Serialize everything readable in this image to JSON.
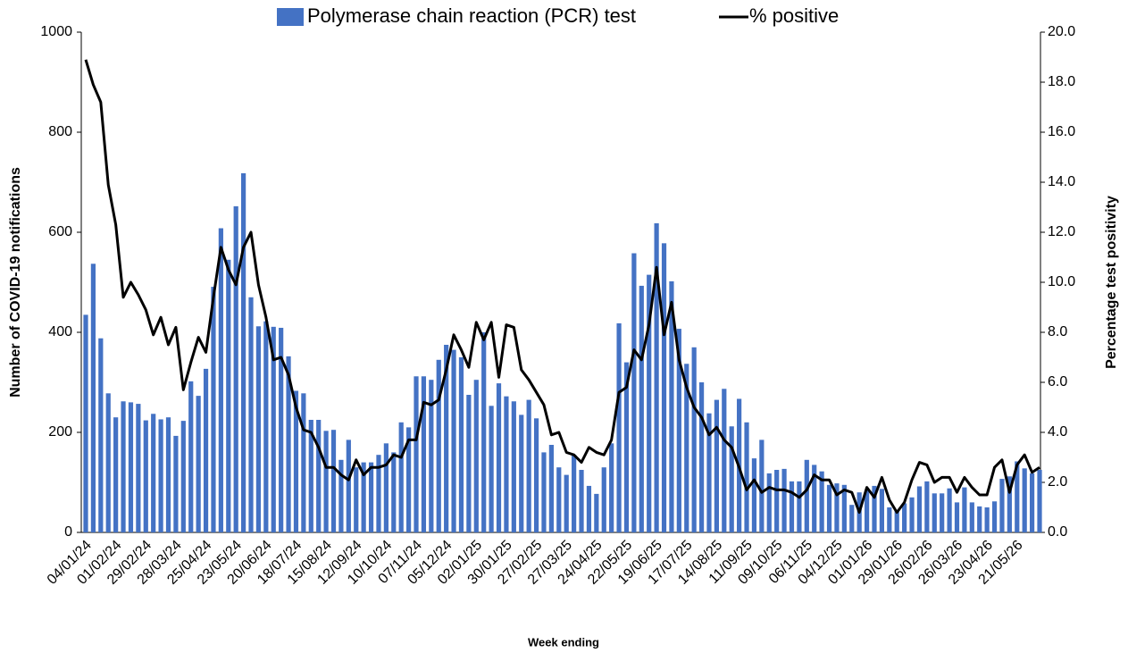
{
  "chart_data": {
    "type": "bar_line",
    "x_label": "Week ending",
    "y_label": "Number of COVID-19 notifications",
    "y2_label": "Percentage test positivity",
    "categories": [
      "04/01/24",
      null,
      null,
      null,
      "01/02/24",
      null,
      null,
      null,
      "29/02/24",
      null,
      null,
      null,
      "28/03/24",
      null,
      null,
      null,
      "25/04/24",
      null,
      null,
      null,
      "23/05/24",
      null,
      null,
      null,
      "20/06/24",
      null,
      null,
      null,
      "18/07/24",
      null,
      null,
      null,
      "15/08/24",
      null,
      null,
      null,
      "12/09/24",
      null,
      null,
      null,
      "10/10/24",
      null,
      null,
      null,
      "07/11/24",
      null,
      null,
      null,
      "05/12/24",
      null,
      null,
      null,
      "02/01/25",
      null,
      null,
      null,
      "30/01/25",
      null,
      null,
      null,
      "27/02/25",
      null,
      null,
      null,
      "27/03/25",
      null,
      null,
      null,
      "24/04/25",
      null,
      null,
      null,
      "22/05/25",
      null,
      null,
      null,
      "19/06/25",
      null,
      null,
      null,
      "17/07/25",
      null,
      null,
      null,
      "14/08/25",
      null,
      null,
      null,
      "11/09/25",
      null,
      null,
      null,
      "09/10/25",
      null,
      null,
      null,
      "06/11/25",
      null,
      null,
      null,
      "04/12/25",
      null,
      null,
      null,
      "01/01/26",
      null,
      null,
      null,
      "29/01/26",
      null,
      null,
      null,
      "26/02/26",
      null,
      null,
      null,
      "26/03/26",
      null,
      null,
      null,
      "23/04/26",
      null,
      null,
      null,
      "21/05/26",
      null,
      null,
      null
    ],
    "series": [
      {
        "name": "Polymerase chain reaction (PCR) test",
        "kind": "bar",
        "color": "#4472c4",
        "values": [
          435,
          537,
          388,
          278,
          230,
          262,
          260,
          257,
          224,
          237,
          226,
          230,
          193,
          223,
          302,
          273,
          327,
          491,
          608,
          545,
          652,
          718,
          470,
          412,
          422,
          411,
          409,
          352,
          283,
          278,
          225,
          225,
          203,
          205,
          145,
          185,
          130,
          140,
          140,
          155,
          178,
          160,
          220,
          210,
          312,
          312,
          305,
          345,
          375,
          365,
          350,
          275,
          305,
          400,
          253,
          298,
          272,
          262,
          235,
          265,
          228,
          160,
          175,
          130,
          115,
          155,
          125,
          93,
          77,
          130,
          178,
          418,
          340,
          558,
          493,
          515,
          618,
          578,
          502,
          407,
          337,
          370,
          300,
          238,
          265,
          287,
          212,
          267,
          220,
          148,
          185,
          118,
          125,
          127,
          102,
          102,
          145,
          135,
          122,
          95,
          98,
          95,
          55,
          80,
          85,
          93,
          87,
          50,
          45,
          58,
          70,
          92,
          102,
          78,
          78,
          88,
          60,
          90,
          60,
          52,
          50,
          62,
          107,
          112,
          142,
          128,
          118,
          125
        ]
      },
      {
        "name": "% positive",
        "kind": "line",
        "color": "#000000",
        "axis": "y2",
        "values": [
          18.9,
          17.9,
          17.2,
          13.9,
          12.3,
          9.4,
          10.0,
          9.5,
          8.9,
          7.9,
          8.6,
          7.5,
          8.2,
          5.7,
          6.8,
          7.8,
          7.2,
          9.4,
          11.4,
          10.5,
          9.9,
          11.4,
          12.0,
          9.9,
          8.6,
          6.9,
          7.0,
          6.3,
          5.0,
          4.1,
          4.0,
          3.4,
          2.6,
          2.6,
          2.3,
          2.1,
          2.9,
          2.3,
          2.6,
          2.6,
          2.7,
          3.1,
          3.0,
          3.7,
          3.7,
          5.2,
          5.1,
          5.3,
          6.5,
          7.9,
          7.3,
          6.6,
          8.4,
          7.7,
          8.4,
          6.2,
          8.3,
          8.2,
          6.5,
          6.1,
          5.6,
          5.1,
          3.9,
          4.0,
          3.2,
          3.1,
          2.8,
          3.4,
          3.2,
          3.1,
          3.7,
          5.6,
          5.8,
          7.3,
          6.9,
          8.3,
          10.6,
          7.9,
          9.2,
          6.9,
          5.8,
          5.0,
          4.6,
          3.9,
          4.2,
          3.7,
          3.4,
          2.6,
          1.7,
          2.1,
          1.6,
          1.8,
          1.7,
          1.7,
          1.6,
          1.4,
          1.7,
          2.3,
          2.1,
          2.1,
          1.5,
          1.7,
          1.6,
          0.8,
          1.8,
          1.4,
          2.2,
          1.3,
          0.8,
          1.2,
          2.1,
          2.8,
          2.7,
          2.0,
          2.2,
          2.2,
          1.6,
          2.2,
          1.8,
          1.5,
          1.5,
          2.6,
          2.9,
          1.6,
          2.7,
          3.1,
          2.4,
          2.6
        ]
      }
    ],
    "ylim": [
      0,
      1000
    ],
    "yticks": [
      0,
      200,
      400,
      600,
      800,
      1000
    ],
    "y2lim": [
      0,
      20
    ],
    "y2ticks": [
      {
        "value": 0,
        "label": "0.0"
      },
      {
        "value": 2,
        "label": "2.0"
      },
      {
        "value": 4,
        "label": "4.0"
      },
      {
        "value": 6,
        "label": "6.0"
      },
      {
        "value": 8,
        "label": "8.0"
      },
      {
        "value": 10,
        "label": "10.0"
      },
      {
        "value": 12,
        "label": "12.0"
      },
      {
        "value": 14,
        "label": "14.0"
      },
      {
        "value": 16,
        "label": "16.0"
      },
      {
        "value": 18,
        "label": "18.0"
      },
      {
        "value": 20,
        "label": "20.0"
      }
    ],
    "grid": false,
    "legend": "top"
  }
}
